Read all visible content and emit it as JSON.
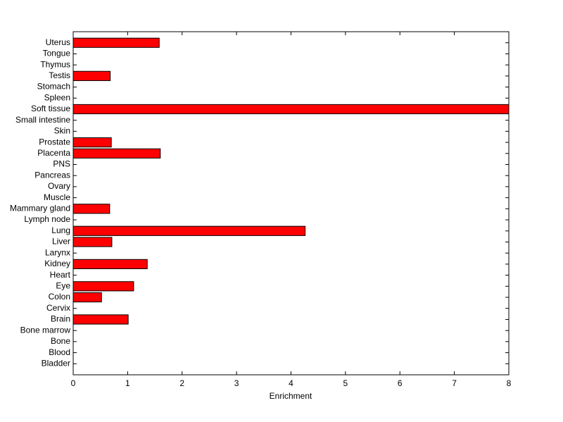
{
  "chart_data": {
    "type": "barh",
    "xlabel": "Enrichment",
    "categories": [
      "Bladder",
      "Blood",
      "Bone",
      "Bone marrow",
      "Brain",
      "Cervix",
      "Colon",
      "Eye",
      "Heart",
      "Kidney",
      "Larynx",
      "Liver",
      "Lung",
      "Lymph node",
      "Mammary gland",
      "Muscle",
      "Ovary",
      "Pancreas",
      "PNS",
      "Placenta",
      "Prostate",
      "Skin",
      "Small intestine",
      "Soft tissue",
      "Spleen",
      "Stomach",
      "Testis",
      "Thymus",
      "Tongue",
      "Uterus"
    ],
    "values": [
      0,
      0,
      0,
      0,
      1.01,
      0,
      0.52,
      1.11,
      0,
      1.36,
      0,
      0.71,
      4.26,
      0,
      0.67,
      0,
      0,
      0,
      0,
      1.6,
      0.7,
      0,
      0,
      8,
      0,
      0,
      0.68,
      0,
      0,
      1.58
    ],
    "color": "#ff0000",
    "xlim": [
      0,
      8
    ],
    "xticks": [
      0,
      1,
      2,
      3,
      4,
      5,
      6,
      7,
      8
    ]
  }
}
